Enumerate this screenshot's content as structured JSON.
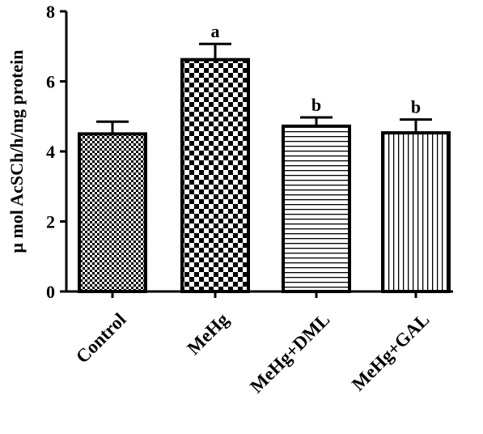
{
  "chart_data": {
    "type": "bar",
    "title": "",
    "xlabel": "",
    "ylabel": "μ mol AcSCh/h/mg protein",
    "ylim": [
      0,
      8
    ],
    "yticks": [
      0,
      2,
      4,
      6,
      8
    ],
    "categories": [
      "Control",
      "MeHg",
      "MeHg+DML",
      "MeHg+GAL"
    ],
    "values": [
      4.5,
      6.62,
      4.72,
      4.53
    ],
    "errors": [
      0.35,
      0.45,
      0.25,
      0.38
    ],
    "significance": [
      "",
      "a",
      "b",
      "b"
    ],
    "patterns": [
      "fine-checker",
      "checker",
      "horizontal-lines",
      "vertical-lines"
    ],
    "colors": {
      "bar_stroke": "#000000",
      "fill": "#000000",
      "background": "#ffffff"
    }
  }
}
